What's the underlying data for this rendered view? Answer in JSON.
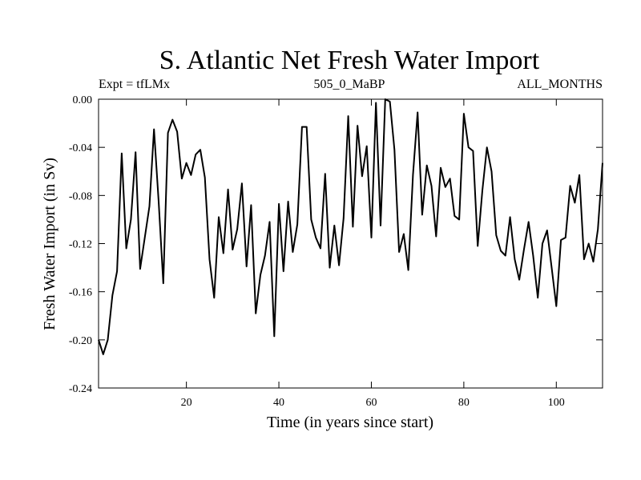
{
  "chart_data": {
    "type": "line",
    "title": "S. Atlantic Net Fresh Water Import",
    "subtitle_left": "Expt = tfLMx",
    "subtitle_center": "505_0_MaBP",
    "subtitle_right": "ALL_MONTHS",
    "xlabel": "Time (in years since start)",
    "ylabel": "Fresh Water Import (in Sv)",
    "xlim": [
      1,
      110
    ],
    "ylim": [
      -0.24,
      0.0
    ],
    "x_ticks": [
      20,
      40,
      60,
      80,
      100
    ],
    "x_tick_labels": [
      "20",
      "40",
      "60",
      "80",
      "100"
    ],
    "y_ticks": [
      0.0,
      -0.04,
      -0.08,
      -0.12,
      -0.16,
      -0.2,
      -0.24
    ],
    "y_tick_labels": [
      "0.00",
      "-0.04",
      "-0.08",
      "-0.12",
      "-0.16",
      "-0.20",
      "-0.24"
    ],
    "grid": false,
    "series": [
      {
        "name": "Net fresh water import",
        "x": [
          1,
          2,
          3,
          4,
          5,
          6,
          7,
          8,
          9,
          10,
          11,
          12,
          13,
          14,
          15,
          16,
          17,
          18,
          19,
          20,
          21,
          22,
          23,
          24,
          25,
          26,
          27,
          28,
          29,
          30,
          31,
          32,
          33,
          34,
          35,
          36,
          37,
          38,
          39,
          40,
          41,
          42,
          43,
          44,
          45,
          46,
          47,
          48,
          49,
          50,
          51,
          52,
          53,
          54,
          55,
          56,
          57,
          58,
          59,
          60,
          61,
          62,
          63,
          64,
          65,
          66,
          67,
          68,
          69,
          70,
          71,
          72,
          73,
          74,
          75,
          76,
          77,
          78,
          79,
          80,
          81,
          82,
          83,
          84,
          85,
          86,
          87,
          88,
          89,
          90,
          91,
          92,
          93,
          94,
          95,
          96,
          97,
          98,
          99,
          100,
          101,
          102,
          103,
          104,
          105,
          106,
          107,
          108,
          109,
          110
        ],
        "values": [
          -0.2,
          -0.212,
          -0.2,
          -0.163,
          -0.143,
          -0.045,
          -0.124,
          -0.1,
          -0.044,
          -0.141,
          -0.115,
          -0.089,
          -0.025,
          -0.085,
          -0.153,
          -0.028,
          -0.017,
          -0.027,
          -0.066,
          -0.053,
          -0.063,
          -0.046,
          -0.042,
          -0.065,
          -0.133,
          -0.165,
          -0.098,
          -0.128,
          -0.075,
          -0.125,
          -0.108,
          -0.07,
          -0.139,
          -0.088,
          -0.178,
          -0.146,
          -0.13,
          -0.102,
          -0.197,
          -0.087,
          -0.143,
          -0.085,
          -0.127,
          -0.104,
          -0.023,
          -0.023,
          -0.1,
          -0.115,
          -0.124,
          -0.062,
          -0.14,
          -0.105,
          -0.138,
          -0.099,
          -0.014,
          -0.106,
          -0.022,
          -0.064,
          -0.039,
          -0.115,
          -0.003,
          -0.105,
          0.0,
          -0.002,
          -0.042,
          -0.127,
          -0.112,
          -0.142,
          -0.063,
          -0.011,
          -0.096,
          -0.055,
          -0.072,
          -0.114,
          -0.057,
          -0.073,
          -0.066,
          -0.097,
          -0.1,
          -0.012,
          -0.04,
          -0.043,
          -0.122,
          -0.076,
          -0.04,
          -0.06,
          -0.113,
          -0.126,
          -0.13,
          -0.098,
          -0.133,
          -0.15,
          -0.125,
          -0.102,
          -0.13,
          -0.165,
          -0.12,
          -0.109,
          -0.14,
          -0.172,
          -0.117,
          -0.115,
          -0.072,
          -0.086,
          -0.063,
          -0.133,
          -0.12,
          -0.135,
          -0.108,
          -0.053
        ]
      }
    ]
  }
}
